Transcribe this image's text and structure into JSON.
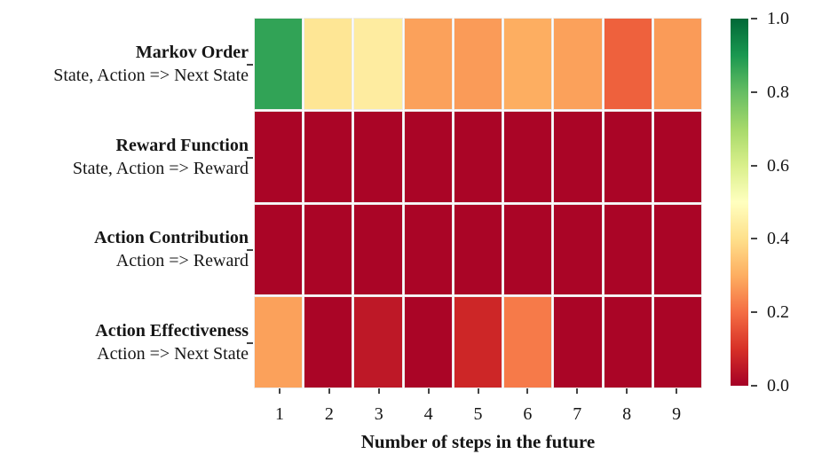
{
  "chart_data": {
    "type": "heatmap",
    "title": "",
    "xlabel": "Number of steps in the future",
    "x_categories": [
      "1",
      "2",
      "3",
      "4",
      "5",
      "6",
      "7",
      "8",
      "9"
    ],
    "colormap": "RdYlGn",
    "value_range": [
      0.0,
      1.0
    ],
    "grid": false,
    "rows": [
      {
        "title": "Markov Order",
        "subtitle": "State, Action => Next State",
        "values": [
          0.87,
          0.42,
          0.44,
          0.28,
          0.27,
          0.3,
          0.28,
          0.18,
          0.27
        ]
      },
      {
        "title": "Reward Function",
        "subtitle": "State, Action => Reward",
        "values": [
          0.01,
          0.01,
          0.01,
          0.01,
          0.01,
          0.01,
          0.01,
          0.01,
          0.01
        ]
      },
      {
        "title": "Action Contribution",
        "subtitle": "Action => Reward",
        "values": [
          0.01,
          0.01,
          0.01,
          0.01,
          0.01,
          0.01,
          0.01,
          0.01,
          0.01
        ]
      },
      {
        "title": "Action Effectiveness",
        "subtitle": "Action => Next State",
        "values": [
          0.28,
          0.01,
          0.05,
          0.01,
          0.08,
          0.22,
          0.01,
          0.01,
          0.01
        ]
      }
    ],
    "colorbar": {
      "min": 0.0,
      "max": 1.0,
      "tick_labels": [
        "1.0",
        "0.8",
        "0.6",
        "0.4",
        "0.2",
        "0.0"
      ],
      "position": "right"
    }
  }
}
